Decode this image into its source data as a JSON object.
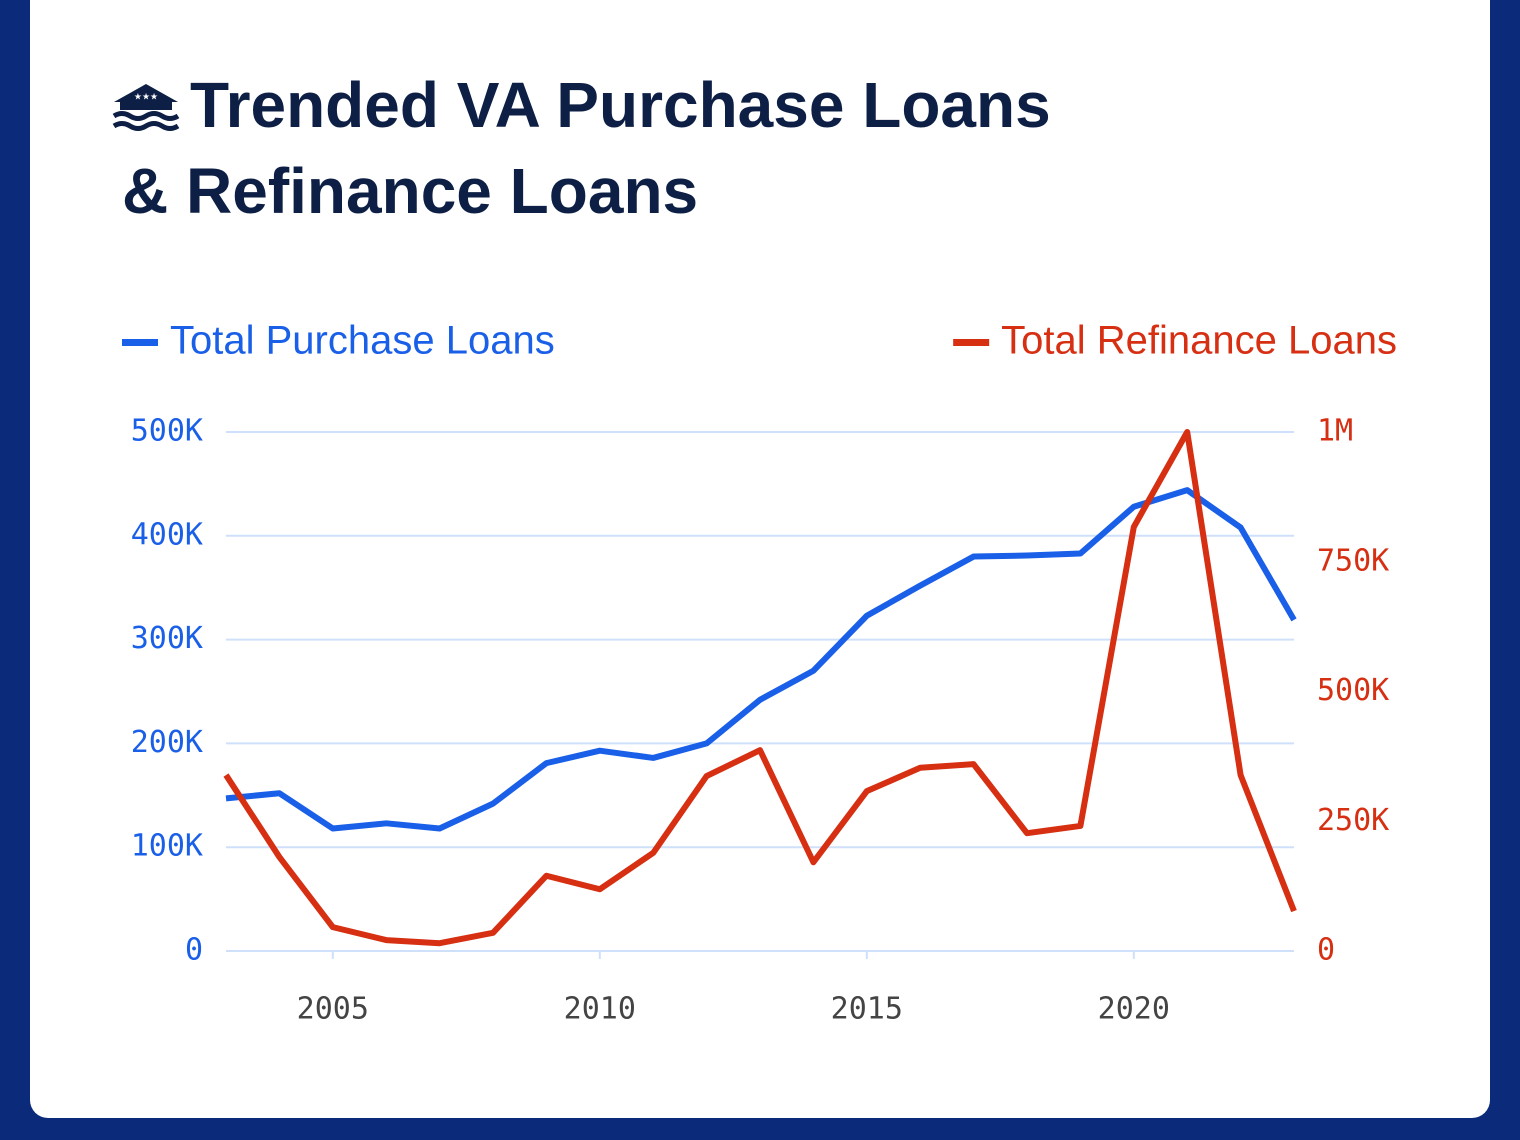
{
  "chart_data": {
    "type": "line",
    "title": [
      "Trended VA Purchase Loans",
      "& Refinance Loans"
    ],
    "x": [
      2003,
      2004,
      2005,
      2006,
      2007,
      2008,
      2009,
      2010,
      2011,
      2012,
      2013,
      2014,
      2015,
      2016,
      2017,
      2018,
      2019,
      2020,
      2021,
      2022,
      2023
    ],
    "series": [
      {
        "name": "Total Purchase Loans",
        "color": "#1a5fe8",
        "axis": "y",
        "values": [
          147000,
          152000,
          118000,
          123000,
          118000,
          142000,
          181000,
          193000,
          186000,
          200000,
          242000,
          270000,
          323000,
          352000,
          380000,
          381000,
          383000,
          428000,
          444000,
          408000,
          319000
        ]
      },
      {
        "name": "Total Refinance Loans",
        "color": "#d62f12",
        "axis": "y2",
        "values": [
          339000,
          181000,
          46000,
          21000,
          15000,
          35000,
          145000,
          119000,
          189000,
          337000,
          387000,
          171000,
          308000,
          353000,
          360000,
          227000,
          241000,
          817000,
          1000000,
          339000,
          77000
        ]
      }
    ],
    "xlim": [
      2003,
      2023
    ],
    "xticks": [
      2005,
      2010,
      2015,
      2020
    ],
    "ylim": [
      0,
      500000
    ],
    "yticks": [
      0,
      {
        "value": 100000,
        "label": "100K"
      },
      {
        "value": 200000,
        "label": "200K"
      },
      {
        "value": 300000,
        "label": "300K"
      },
      {
        "value": 400000,
        "label": "400K"
      },
      {
        "value": 500000,
        "label": "500K"
      }
    ],
    "y2lim": [
      0,
      1000000
    ],
    "y2ticks": [
      0,
      {
        "value": 250000,
        "label": "250K"
      },
      {
        "value": 500000,
        "label": "500K"
      },
      {
        "value": 750000,
        "label": "750K"
      },
      {
        "value": 1000000,
        "label": "1M"
      }
    ],
    "grid": true,
    "legend": "top"
  }
}
